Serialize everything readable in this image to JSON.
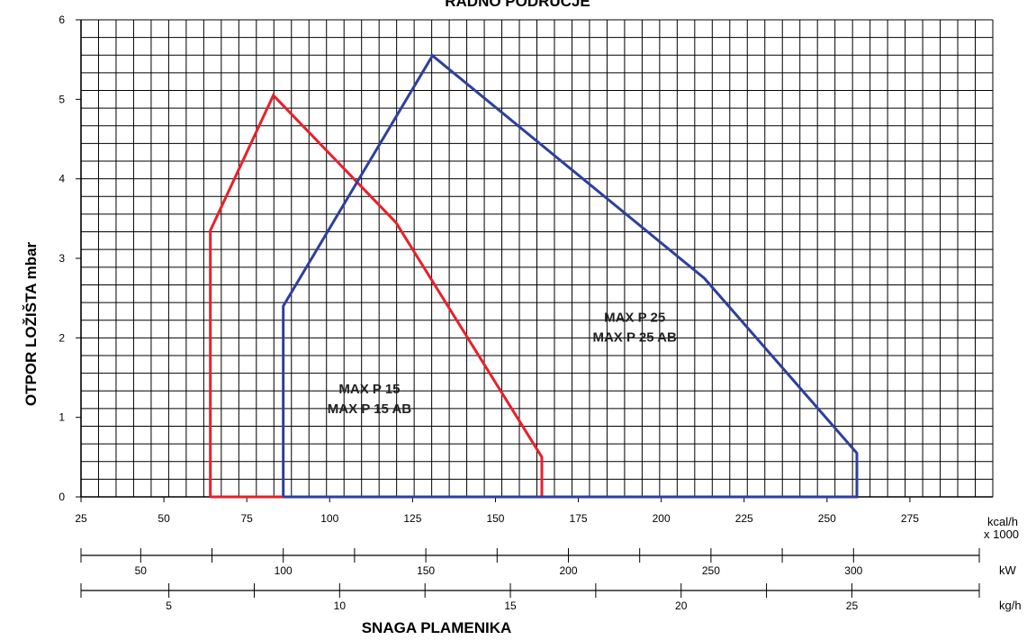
{
  "chart_data": {
    "type": "line",
    "title": "RADNO PODRUČJE",
    "xlabel": "SNAGA PLAMENIKA",
    "ylabel": "OTPOR LOŽIŠTA  mbar",
    "x_unit": "kcal/h",
    "x_unit_sub": "x 1000",
    "xlim": [
      25,
      300
    ],
    "ylim": [
      0,
      6
    ],
    "x_ticks": [
      "25",
      "50",
      "75",
      "100",
      "125",
      "150",
      "175",
      "200",
      "225",
      "250",
      "275"
    ],
    "y_ticks": [
      "0",
      "1",
      "2",
      "3",
      "4",
      "5",
      "6"
    ],
    "grid": true,
    "secondary_axes": [
      {
        "unit": "kW",
        "ticks": [
          "50",
          "100",
          "150",
          "200",
          "250",
          "300"
        ],
        "values_kcal": [
          43,
          86,
          129,
          172,
          215,
          258
        ]
      },
      {
        "unit": "kg/h",
        "ticks": [
          "5",
          "10",
          "15",
          "20",
          "25"
        ],
        "values_kcal": [
          51.5,
          103,
          154.5,
          206,
          257.5
        ]
      }
    ],
    "series": [
      {
        "name": "MAX P 15",
        "name2": "MAX P 15 AB",
        "color": "#e8202a",
        "label_pos": [
          112,
          1.3
        ],
        "points": [
          [
            64,
            0
          ],
          [
            64,
            3.35
          ],
          [
            83,
            5.05
          ],
          [
            120,
            3.45
          ],
          [
            164,
            0.5
          ],
          [
            164,
            0
          ],
          [
            64,
            0
          ]
        ]
      },
      {
        "name": "MAX P 25",
        "name2": "MAX P 25 AB",
        "color": "#2e3f9e",
        "label_pos": [
          192,
          2.2
        ],
        "points": [
          [
            86,
            0
          ],
          [
            86,
            2.4
          ],
          [
            131,
            5.55
          ],
          [
            213,
            2.75
          ],
          [
            259,
            0.55
          ],
          [
            259,
            0
          ],
          [
            86,
            0
          ]
        ]
      }
    ]
  }
}
